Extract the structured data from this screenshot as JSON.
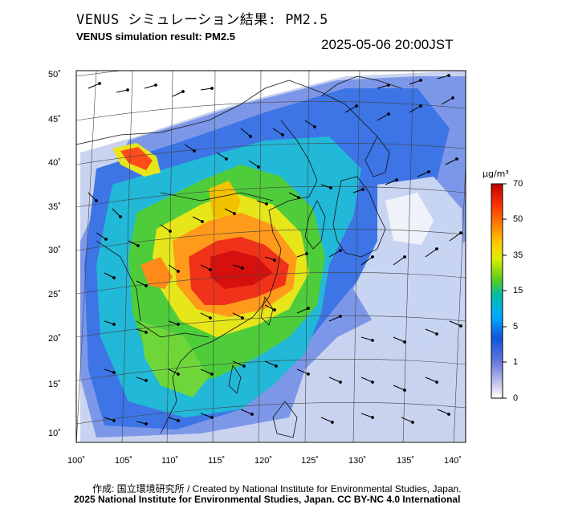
{
  "header": {
    "title_ja": "VENUS シミュレーション結果: PM2.5",
    "title_en": "VENUS simulation result: PM2.5",
    "timestamp": "2025-05-06 20:00JST"
  },
  "axes": {
    "lat_labels": [
      "50˚",
      "45˚",
      "40˚",
      "35˚",
      "30˚",
      "25˚",
      "20˚",
      "15˚",
      "10˚"
    ],
    "lon_labels": [
      "100˚",
      "105˚",
      "110˚",
      "115˚",
      "120˚",
      "125˚",
      "130˚",
      "135˚",
      "140˚"
    ]
  },
  "colorbar": {
    "unit": "μg/m³",
    "ticks": [
      "70",
      "50",
      "35",
      "15",
      "5",
      "1",
      "0"
    ],
    "colors": [
      "#cc0000",
      "#ff3300",
      "#ff9900",
      "#ffee00",
      "#aadd00",
      "#22cc22",
      "#00cccc",
      "#0099ff",
      "#2255ee",
      "#8899ee",
      "#ffffff"
    ]
  },
  "footer": {
    "credit": "作成: 国立環境研究所 / Created by National Institute for Environmental Studies, Japan.",
    "copyright": "2025 National Institute for Environmental Studies, Japan. CC BY-NC 4.0 International"
  }
}
